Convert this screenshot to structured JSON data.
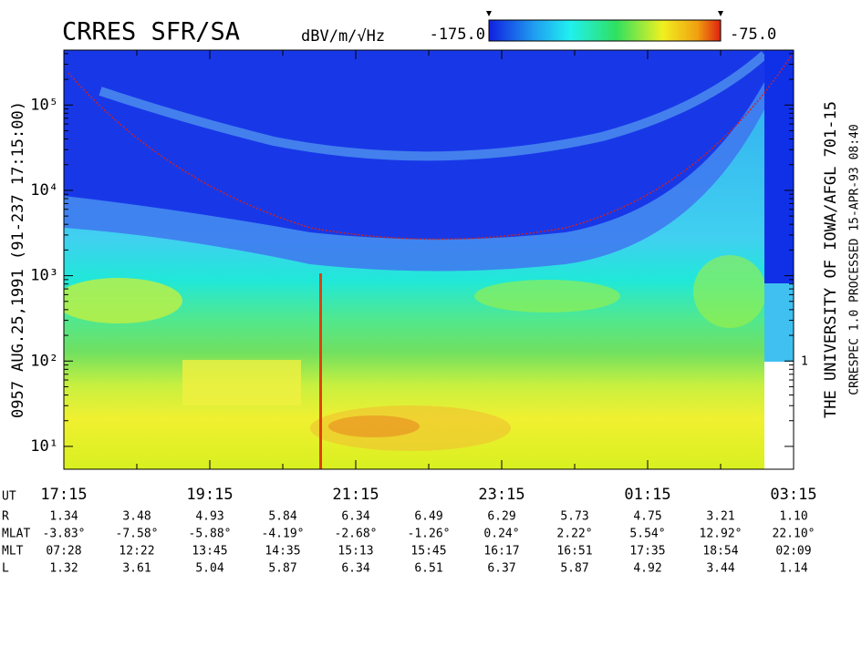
{
  "chart_data": {
    "type": "spectrogram",
    "title": "CRRES SFR/SA",
    "colorbar_label": "dBV/m/√Hz",
    "clim": [
      -175,
      -75
    ],
    "cticks": [
      {
        "value": -175,
        "label": "-175.0"
      },
      {
        "value": -75,
        "label": "-75.0"
      }
    ],
    "left_label": "0957   AUG.25,1991   (91-237 17:15:00)",
    "right_label": "THE UNIVERSITY OF IOWA/AFGL 701-15",
    "right_note": "CRRESPEC 1.0   PROCESSED 15-APR-93  08:40",
    "right_axis_label": "1",
    "log_y": true,
    "ylim": [
      5.4,
      440000
    ],
    "yticks": [
      {
        "value": 10,
        "label": "10¹"
      },
      {
        "value": 100,
        "label": "10²"
      },
      {
        "value": 1000,
        "label": "10³"
      },
      {
        "value": 10000,
        "label": "10⁴"
      },
      {
        "value": 100000,
        "label": "10⁵"
      }
    ],
    "x_label": "UT",
    "categories": [
      "17:15",
      null,
      "19:15",
      null,
      "21:15",
      null,
      "23:15",
      null,
      "01:15",
      null,
      "03:15"
    ],
    "ephemeris": [
      {
        "name": "R",
        "values": [
          "1.34",
          "3.48",
          "4.93",
          "5.84",
          "6.34",
          "6.49",
          "6.29",
          "5.73",
          "4.75",
          "3.21",
          "1.10"
        ]
      },
      {
        "name": "MLAT",
        "values": [
          "-3.83°",
          "-7.58°",
          "-5.88°",
          "-4.19°",
          "-2.68°",
          "-1.26°",
          "0.24°",
          "2.22°",
          "5.54°",
          "12.92°",
          "22.10°"
        ]
      },
      {
        "name": "MLT",
        "values": [
          "07:28",
          "12:22",
          "13:45",
          "14:35",
          "15:13",
          "15:45",
          "16:17",
          "16:51",
          "17:35",
          "18:54",
          "02:09"
        ]
      },
      {
        "name": "L",
        "values": [
          "1.32",
          "3.61",
          "5.04",
          "5.87",
          "6.34",
          "6.51",
          "6.37",
          "5.87",
          "4.92",
          "3.44",
          "1.14"
        ]
      }
    ]
  }
}
